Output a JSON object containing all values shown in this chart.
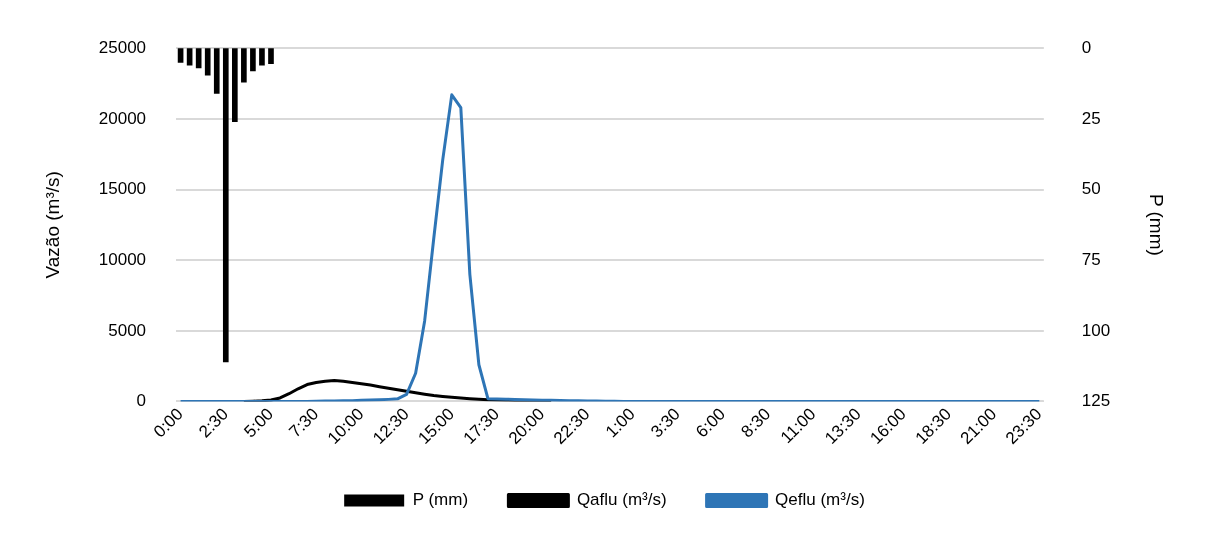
{
  "chart_data": {
    "type": "line",
    "ylabel": "Vazão (m³/s)",
    "y2label": "P (mm)",
    "categories": [
      "0:00",
      null,
      null,
      null,
      null,
      "2:30",
      null,
      null,
      null,
      null,
      "5:00",
      null,
      null,
      null,
      null,
      "7:30",
      null,
      null,
      null,
      null,
      "10:00",
      null,
      null,
      null,
      null,
      "12:30",
      null,
      null,
      null,
      null,
      "15:00",
      null,
      null,
      null,
      null,
      "17:30",
      null,
      null,
      null,
      null,
      "20:00",
      null,
      null,
      null,
      null,
      "22:30",
      null,
      null,
      null,
      null,
      "1:00",
      null,
      null,
      null,
      null,
      "3:30",
      null,
      null,
      null,
      null,
      "6:00",
      null,
      null,
      null,
      null,
      "8:30",
      null,
      null,
      null,
      null,
      "11:00",
      null,
      null,
      null,
      null,
      "13:30",
      null,
      null,
      null,
      null,
      "16:00",
      null,
      null,
      null,
      null,
      "18:30",
      null,
      null,
      null,
      null,
      "21:00",
      null,
      null,
      null,
      null,
      "23:30"
    ],
    "series": [
      {
        "name": "P (mm)",
        "type": "bar",
        "axis": "y2",
        "color": "#000000",
        "values": [
          5,
          6,
          7,
          9.5,
          16,
          111,
          26,
          12,
          8,
          6,
          5.5,
          null,
          null,
          null,
          null,
          null,
          null,
          null,
          null,
          null,
          null,
          null,
          null,
          null,
          null,
          null,
          null,
          null,
          null,
          null,
          null,
          null,
          null,
          null,
          null,
          null,
          null,
          null,
          null,
          null,
          null,
          null,
          null,
          null,
          null,
          null,
          null,
          null,
          null,
          null,
          null,
          null,
          null,
          null,
          null,
          null,
          null,
          null,
          null,
          null,
          null,
          null,
          null,
          null,
          null,
          null,
          null,
          null,
          null,
          null,
          null,
          null,
          null,
          null,
          null,
          null,
          null,
          null,
          null,
          null,
          null,
          null,
          null,
          null,
          null,
          null,
          null,
          null,
          null,
          null,
          null,
          null,
          null,
          null,
          null,
          null
        ]
      },
      {
        "name": "Qaflu (m³/s)",
        "color": "#000000",
        "values": [
          null,
          null,
          null,
          null,
          null,
          null,
          null,
          0,
          20,
          50,
          100,
          250,
          550,
          900,
          1200,
          1350,
          1440,
          1480,
          1430,
          1350,
          1260,
          1160,
          1050,
          940,
          830,
          720,
          620,
          520,
          430,
          360,
          300,
          250,
          200,
          160,
          130,
          110,
          90,
          70,
          60,
          50,
          40,
          30,
          null,
          null,
          null,
          null,
          null,
          null,
          null,
          null,
          null,
          null,
          null,
          null,
          null,
          null,
          null,
          null,
          null,
          null,
          null,
          null,
          null,
          null,
          null,
          null,
          null,
          null,
          null,
          null,
          null,
          null,
          null,
          null,
          null,
          null,
          null,
          null,
          null,
          null,
          null,
          null,
          null,
          null,
          null,
          null,
          null,
          null,
          null,
          null,
          null,
          null,
          null,
          null,
          null,
          null
        ]
      },
      {
        "name": "Qeflu (m³/s)",
        "color": "#2e75b6",
        "values": [
          0,
          0,
          0,
          0,
          0,
          0,
          0,
          0,
          0,
          0,
          0,
          0,
          0,
          0,
          0,
          20,
          30,
          40,
          50,
          60,
          80,
          100,
          120,
          150,
          190,
          500,
          2000,
          5700,
          11500,
          17100,
          21700,
          20800,
          9000,
          2600,
          200,
          180,
          160,
          140,
          120,
          100,
          90,
          80,
          70,
          60,
          50,
          40,
          30,
          20,
          10,
          0,
          0,
          0,
          0,
          0,
          0,
          0,
          0,
          0,
          0,
          0,
          0,
          0,
          0,
          0,
          0,
          0,
          0,
          0,
          0,
          0,
          0,
          0,
          0,
          0,
          0,
          0,
          0,
          0,
          0,
          0,
          0,
          0,
          0,
          0,
          0,
          0,
          0,
          0,
          0,
          0,
          0,
          0,
          0,
          0,
          0,
          0
        ]
      }
    ],
    "ylim": [
      0,
      25000
    ],
    "yticks": [
      0,
      5000,
      10000,
      15000,
      20000,
      25000
    ],
    "y2lim": [
      125,
      0
    ],
    "y2ticks": [
      0,
      25,
      50,
      75,
      100,
      125
    ],
    "grid": "y",
    "legend": "bottom",
    "marker": "none",
    "line_style": "solid"
  }
}
